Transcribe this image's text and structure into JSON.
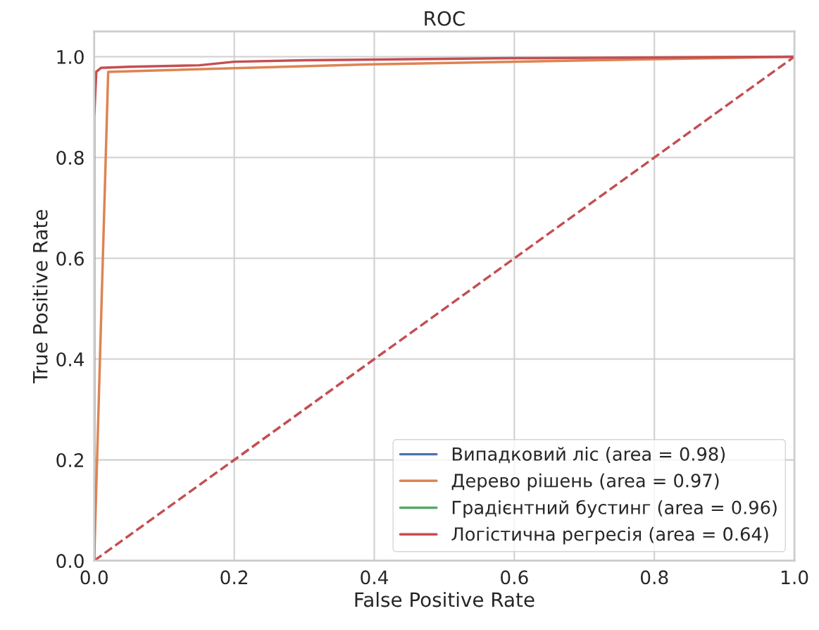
{
  "chart_data": {
    "type": "line",
    "title": "ROC",
    "xlabel": "False Positive Rate",
    "ylabel": "True Positive Rate",
    "xlim": [
      0.0,
      1.0
    ],
    "ylim": [
      0.0,
      1.05
    ],
    "xticks": [
      {
        "value": 0,
        "label": "0.0"
      },
      0.2,
      0.4,
      0.6,
      0.8,
      {
        "value": 1,
        "label": "1.0"
      }
    ],
    "yticks": [
      {
        "value": 0,
        "label": "0.0"
      },
      0.2,
      0.4,
      0.6,
      0.8,
      {
        "value": 1,
        "label": "1.0"
      }
    ],
    "grid": true,
    "legend": "bottom right",
    "series": [
      {
        "name": "Випадковий ліс (area = 0.98)",
        "color": "#4c72b0"
      },
      {
        "name": "Дерево рішень (area = 0.97)",
        "color": "#dd8452",
        "x": [
          0,
          0.02,
          0.4,
          0.8,
          1.0
        ],
        "values": [
          0,
          0.97,
          0.985,
          0.995,
          1.0
        ]
      },
      {
        "name": "Градієнтний бустинг (area = 0.96)",
        "color": "#55a868"
      },
      {
        "name": "Логістична регресія (area = 0.64)",
        "color": "#c44e52",
        "x": [
          0,
          0,
          0.003,
          0.01,
          0.05,
          0.15,
          0.2,
          0.3,
          0.6,
          1.0
        ],
        "values": [
          0,
          0.88,
          0.97,
          0.978,
          0.98,
          0.983,
          0.99,
          0.993,
          0.997,
          1.0
        ]
      },
      {
        "color": "#c44e52",
        "line_style": "dashed",
        "x": [
          0,
          1
        ],
        "values": [
          0,
          1
        ]
      }
    ]
  }
}
